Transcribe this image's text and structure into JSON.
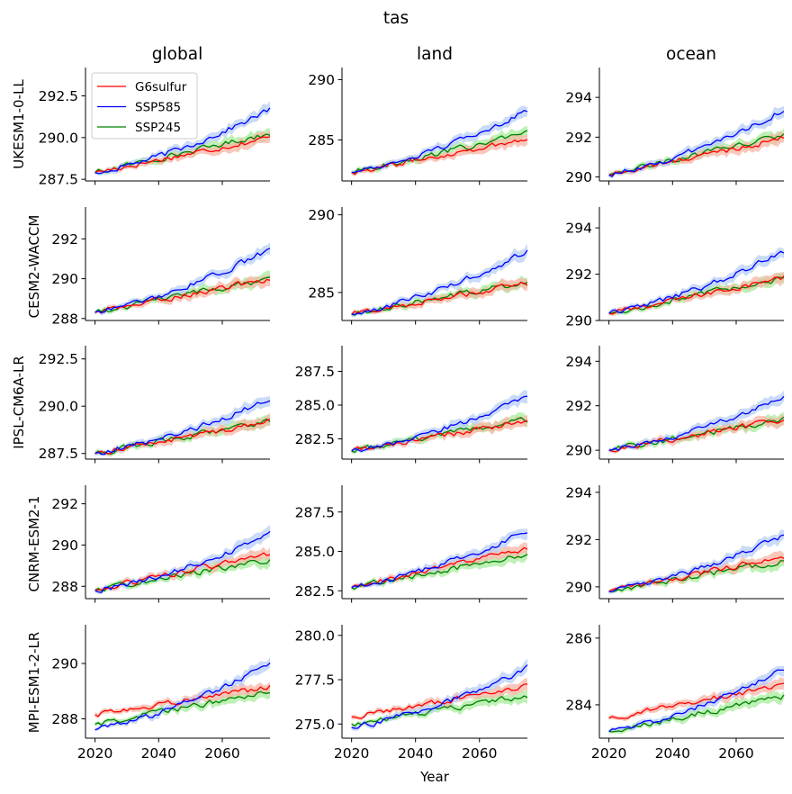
{
  "chart_data": {
    "type": "line",
    "title": "tas",
    "xlabel": "Year",
    "column_titles": [
      "global",
      "land",
      "ocean"
    ],
    "row_labels": [
      "UKESM1-0-LL",
      "CESM2-WACCM",
      "IPSL-CM6A-LR",
      "CNRM-ESM2-1",
      "MPI-ESM1-2-LR"
    ],
    "x_ticks": [
      2020,
      2040,
      2060
    ],
    "x_tick_labels": [
      "2020",
      "2040",
      "2060"
    ],
    "xlim": [
      2017,
      2075
    ],
    "legend": {
      "position": "upper-left of first panel",
      "entries": [
        "G6sulfur",
        "SSP585",
        "SSP245"
      ]
    },
    "colors": {
      "G6sulfur": "#ff0000",
      "SSP585": "#0000ff",
      "SSP245": "#008000",
      "G6sulfur_band": "#f7b5a5",
      "SSP585_band": "#b7cff5",
      "SSP245_band": "#a8ec9c"
    },
    "panels": [
      {
        "row": 0,
        "col": 0,
        "ylim": [
          287.4,
          294.2
        ],
        "yticks": [
          287.5,
          290.0,
          292.5
        ],
        "ytick_labels": [
          "287.5",
          "290.0",
          "292.5"
        ],
        "start": [
          287.9,
          287.9,
          287.9
        ],
        "end": [
          290.0,
          291.7,
          290.25
        ]
      },
      {
        "row": 0,
        "col": 1,
        "ylim": [
          281.6,
          291.0
        ],
        "yticks": [
          285,
          290
        ],
        "ytick_labels": [
          "285",
          "290"
        ],
        "start": [
          282.3,
          282.3,
          282.3
        ],
        "end": [
          285.1,
          287.5,
          285.5
        ]
      },
      {
        "row": 0,
        "col": 2,
        "ylim": [
          289.8,
          295.5
        ],
        "yticks": [
          290,
          292,
          294
        ],
        "ytick_labels": [
          "290",
          "292",
          "294"
        ],
        "start": [
          290.1,
          290.1,
          290.1
        ],
        "end": [
          291.95,
          293.4,
          292.1
        ]
      },
      {
        "row": 1,
        "col": 0,
        "ylim": [
          287.9,
          293.6
        ],
        "yticks": [
          288,
          290,
          292
        ],
        "ytick_labels": [
          "288",
          "290",
          "292"
        ],
        "start": [
          288.3,
          288.3,
          288.3
        ],
        "end": [
          290.0,
          291.5,
          290.0
        ]
      },
      {
        "row": 1,
        "col": 1,
        "ylim": [
          283.2,
          290.5
        ],
        "yticks": [
          285,
          290
        ],
        "ytick_labels": [
          "285",
          "290"
        ],
        "start": [
          283.6,
          283.6,
          283.6
        ],
        "end": [
          285.6,
          287.7,
          285.7
        ]
      },
      {
        "row": 1,
        "col": 2,
        "ylim": [
          290.0,
          294.9
        ],
        "yticks": [
          290,
          292,
          294
        ],
        "ytick_labels": [
          "290",
          "292",
          "294"
        ],
        "start": [
          290.3,
          290.3,
          290.3
        ],
        "end": [
          291.85,
          293.0,
          291.85
        ]
      },
      {
        "row": 2,
        "col": 0,
        "ylim": [
          287.2,
          293.2
        ],
        "yticks": [
          287.5,
          290.0,
          292.5
        ],
        "ytick_labels": [
          "287.5",
          "290.0",
          "292.5"
        ],
        "start": [
          287.5,
          287.5,
          287.5
        ],
        "end": [
          289.2,
          290.4,
          289.2
        ]
      },
      {
        "row": 2,
        "col": 1,
        "ylim": [
          281.0,
          289.4
        ],
        "yticks": [
          282.5,
          285.0,
          287.5
        ],
        "ytick_labels": [
          "282.5",
          "285.0",
          "287.5"
        ],
        "start": [
          281.6,
          281.6,
          281.6
        ],
        "end": [
          283.8,
          285.6,
          283.9
        ]
      },
      {
        "row": 2,
        "col": 2,
        "ylim": [
          289.6,
          294.7
        ],
        "yticks": [
          290,
          292,
          294
        ],
        "ytick_labels": [
          "290",
          "292",
          "294"
        ],
        "start": [
          290.0,
          290.0,
          290.0
        ],
        "end": [
          291.4,
          292.4,
          291.4
        ]
      },
      {
        "row": 3,
        "col": 0,
        "ylim": [
          287.4,
          292.9
        ],
        "yticks": [
          288,
          290,
          292
        ],
        "ytick_labels": [
          "288",
          "290",
          "292"
        ],
        "start": [
          287.8,
          287.8,
          287.8
        ],
        "end": [
          289.6,
          290.5,
          289.3
        ]
      },
      {
        "row": 3,
        "col": 1,
        "ylim": [
          282.0,
          289.2
        ],
        "yticks": [
          282.5,
          285.0,
          287.5
        ],
        "ytick_labels": [
          "282.5",
          "285.0",
          "287.5"
        ],
        "start": [
          282.7,
          282.7,
          282.7
        ],
        "end": [
          285.2,
          286.3,
          284.8
        ]
      },
      {
        "row": 3,
        "col": 2,
        "ylim": [
          289.5,
          294.3
        ],
        "yticks": [
          290,
          292,
          294
        ],
        "ytick_labels": [
          "290",
          "292",
          "294"
        ],
        "start": [
          289.8,
          289.8,
          289.8
        ],
        "end": [
          291.3,
          292.2,
          291.1
        ]
      },
      {
        "row": 4,
        "col": 0,
        "ylim": [
          287.3,
          291.4
        ],
        "yticks": [
          288,
          290
        ],
        "ytick_labels": [
          "288",
          "290"
        ],
        "start": [
          288.15,
          287.6,
          287.8
        ],
        "end": [
          289.15,
          290.0,
          289.0
        ]
      },
      {
        "row": 4,
        "col": 1,
        "ylim": [
          274.2,
          280.6
        ],
        "yticks": [
          275.0,
          277.5,
          280.0
        ],
        "ytick_labels": [
          "275.0",
          "277.5",
          "280.0"
        ],
        "start": [
          275.4,
          274.8,
          275.0
        ],
        "end": [
          277.1,
          278.2,
          276.6
        ]
      },
      {
        "row": 4,
        "col": 2,
        "ylim": [
          283.0,
          286.4
        ],
        "yticks": [
          284,
          286
        ],
        "ytick_labels": [
          "284",
          "286"
        ],
        "start": [
          283.6,
          283.2,
          283.2
        ],
        "end": [
          284.6,
          285.1,
          284.25
        ]
      }
    ]
  }
}
